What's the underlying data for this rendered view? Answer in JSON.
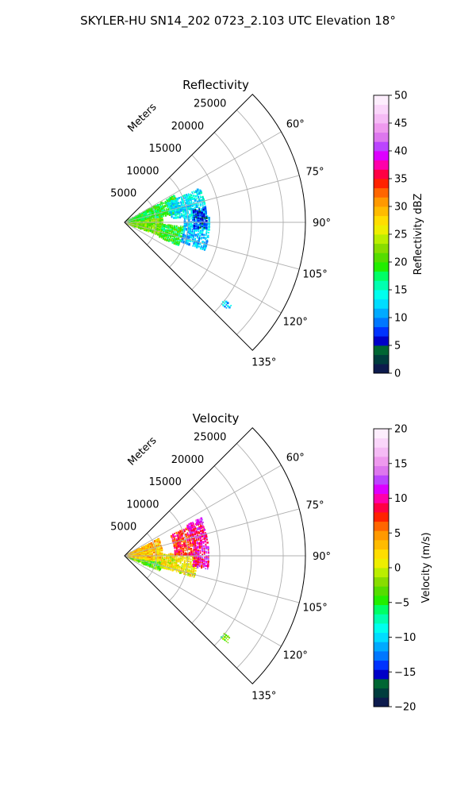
{
  "figure": {
    "suptitle": "SKYLER-HU  SN14_202  0723_2.103 UTC Elevation 18°"
  },
  "chart_data": [
    {
      "type": "polar-sector",
      "title": "Reflectivity",
      "range_label": "Meters",
      "r_ticks": [
        5000,
        10000,
        15000,
        20000,
        25000
      ],
      "r_tick_labels": [
        "5000",
        "10000",
        "15000",
        "20000",
        "25000"
      ],
      "r_max": 28500,
      "theta_range_deg": [
        45,
        135
      ],
      "theta_ticks_deg": [
        60,
        75,
        90,
        105,
        120,
        135
      ],
      "theta_tick_labels": [
        "60°",
        "75°",
        "90°",
        "105°",
        "120°",
        "135°"
      ],
      "grid": true,
      "colorbar": {
        "label": "Reflectivity dBZ",
        "min": 0,
        "max": 50,
        "ticks": [
          0,
          5,
          10,
          15,
          20,
          25,
          30,
          35,
          40,
          45,
          50
        ],
        "tick_labels": [
          "0",
          "5",
          "10",
          "15",
          "20",
          "25",
          "30",
          "35",
          "40",
          "45",
          "50"
        ],
        "colors": [
          "#0d1b4d",
          "#003d3d",
          "#006633",
          "#0000c8",
          "#0033ff",
          "#0077ff",
          "#00aaff",
          "#00ddff",
          "#00ffee",
          "#00ffb0",
          "#00ff66",
          "#22ee00",
          "#55dd00",
          "#88dd00",
          "#bbee00",
          "#eeee00",
          "#ffdd00",
          "#ffbb00",
          "#ff9900",
          "#ff6600",
          "#ff2200",
          "#ff0044",
          "#ff00aa",
          "#dd00ff",
          "#bb44ff",
          "#dd77ee",
          "#ee99ee",
          "#f5bbf5",
          "#fad6fa",
          "#fdeefd"
        ]
      },
      "echo_regions": [
        {
          "r": [
            500,
            6000
          ],
          "theta": [
            84,
            112
          ],
          "value": 22
        },
        {
          "r": [
            500,
            9000
          ],
          "theta": [
            62,
            82
          ],
          "value": 19
        },
        {
          "r": [
            6000,
            9500
          ],
          "theta": [
            94,
            114
          ],
          "value": 19
        },
        {
          "r": [
            7500,
            13000
          ],
          "theta": [
            66,
            86
          ],
          "value": 13
        },
        {
          "r": [
            9500,
            13500
          ],
          "theta": [
            86,
            110
          ],
          "value": 12
        },
        {
          "r": [
            11000,
            13000
          ],
          "theta": [
            80,
            96
          ],
          "value": 7
        },
        {
          "r": [
            20000,
            21500
          ],
          "theta": [
            128,
            131
          ],
          "value": 12
        }
      ]
    },
    {
      "type": "polar-sector",
      "title": "Velocity",
      "range_label": "Meters",
      "r_ticks": [
        5000,
        10000,
        15000,
        20000,
        25000
      ],
      "r_tick_labels": [
        "5000",
        "10000",
        "15000",
        "20000",
        "25000"
      ],
      "r_max": 28500,
      "theta_range_deg": [
        45,
        135
      ],
      "theta_ticks_deg": [
        60,
        75,
        90,
        105,
        120,
        135
      ],
      "theta_tick_labels": [
        "60°",
        "75°",
        "90°",
        "105°",
        "120°",
        "135°"
      ],
      "grid": true,
      "colorbar": {
        "label": "Velocity (m/s)",
        "min": -20,
        "max": 20,
        "ticks": [
          -20,
          -15,
          -10,
          -5,
          0,
          5,
          10,
          15,
          20
        ],
        "tick_labels": [
          "−20",
          "−15",
          "−10",
          "−5",
          "0",
          "5",
          "10",
          "15",
          "20"
        ],
        "colors": [
          "#0d1b4d",
          "#003d3d",
          "#006633",
          "#0000c8",
          "#0033ff",
          "#0077ff",
          "#00aaff",
          "#00ddff",
          "#00ffee",
          "#00ffb0",
          "#00ff66",
          "#22ee00",
          "#55dd00",
          "#88dd00",
          "#bbee00",
          "#eeee00",
          "#ffdd00",
          "#ffbb00",
          "#ff9900",
          "#ff6600",
          "#ff2200",
          "#ff0044",
          "#ff00aa",
          "#dd00ff",
          "#bb44ff",
          "#dd77ee",
          "#ee99ee",
          "#f5bbf5",
          "#fad6fa",
          "#fdeefd"
        ]
      },
      "echo_regions": [
        {
          "r": [
            500,
            6000
          ],
          "theta": [
            100,
            114
          ],
          "value": -3
        },
        {
          "r": [
            500,
            6000
          ],
          "theta": [
            64,
            100
          ],
          "value": 3
        },
        {
          "r": [
            6000,
            11500
          ],
          "theta": [
            88,
            108
          ],
          "value": 1
        },
        {
          "r": [
            8000,
            11500
          ],
          "theta": [
            66,
            90
          ],
          "value": 8
        },
        {
          "r": [
            11000,
            13500
          ],
          "theta": [
            64,
            100
          ],
          "value": 10
        },
        {
          "r": [
            12500,
            13500
          ],
          "theta": [
            64,
            68
          ],
          "value": 13
        },
        {
          "r": [
            20000,
            21500
          ],
          "theta": [
            128,
            131
          ],
          "value": -3
        }
      ]
    }
  ]
}
